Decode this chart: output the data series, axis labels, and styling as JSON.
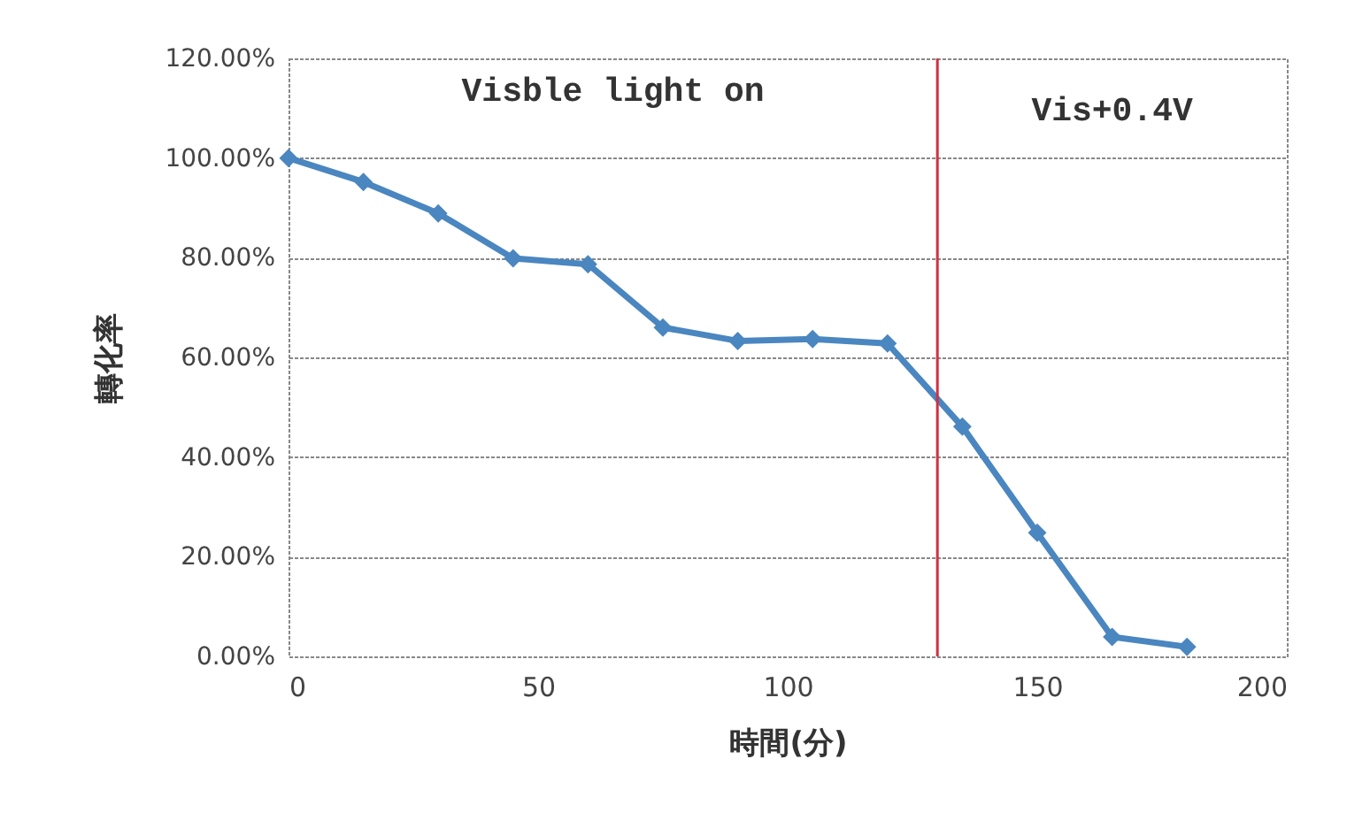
{
  "chart_data": {
    "type": "line",
    "xlabel": "時間(分)",
    "ylabel": "轉化率",
    "x": [
      0,
      15,
      30,
      45,
      60,
      75,
      90,
      105,
      120,
      135,
      150,
      165,
      180
    ],
    "series": [
      {
        "color": "#4a86c0",
        "values": [
          100,
          95.2,
          88.9,
          79.9,
          78.7,
          66,
          63.3,
          63.7,
          62.8,
          46.1,
          24.8,
          3.9,
          1.9
        ]
      }
    ],
    "xlim": [
      0,
      200
    ],
    "xticks": [
      0,
      50,
      100,
      150,
      200
    ],
    "ylim": [
      0,
      120
    ],
    "yticks": [
      {
        "value": 0,
        "label": "0.00%"
      },
      {
        "value": 20,
        "label": "20.00%"
      },
      {
        "value": 40,
        "label": "40.00%"
      },
      {
        "value": 60,
        "label": "60.00%"
      },
      {
        "value": 80,
        "label": "80.00%"
      },
      {
        "value": 100,
        "label": "100.00%"
      },
      {
        "value": 120,
        "label": "120.00%"
      }
    ],
    "ref_lines": [
      {
        "axis": "x",
        "value": 130,
        "color": "#d03040"
      }
    ],
    "annotations": [
      "Visble light on",
      "Vis+0.4V"
    ],
    "grid": "y",
    "marker": "diamond",
    "line_style": "solid"
  }
}
